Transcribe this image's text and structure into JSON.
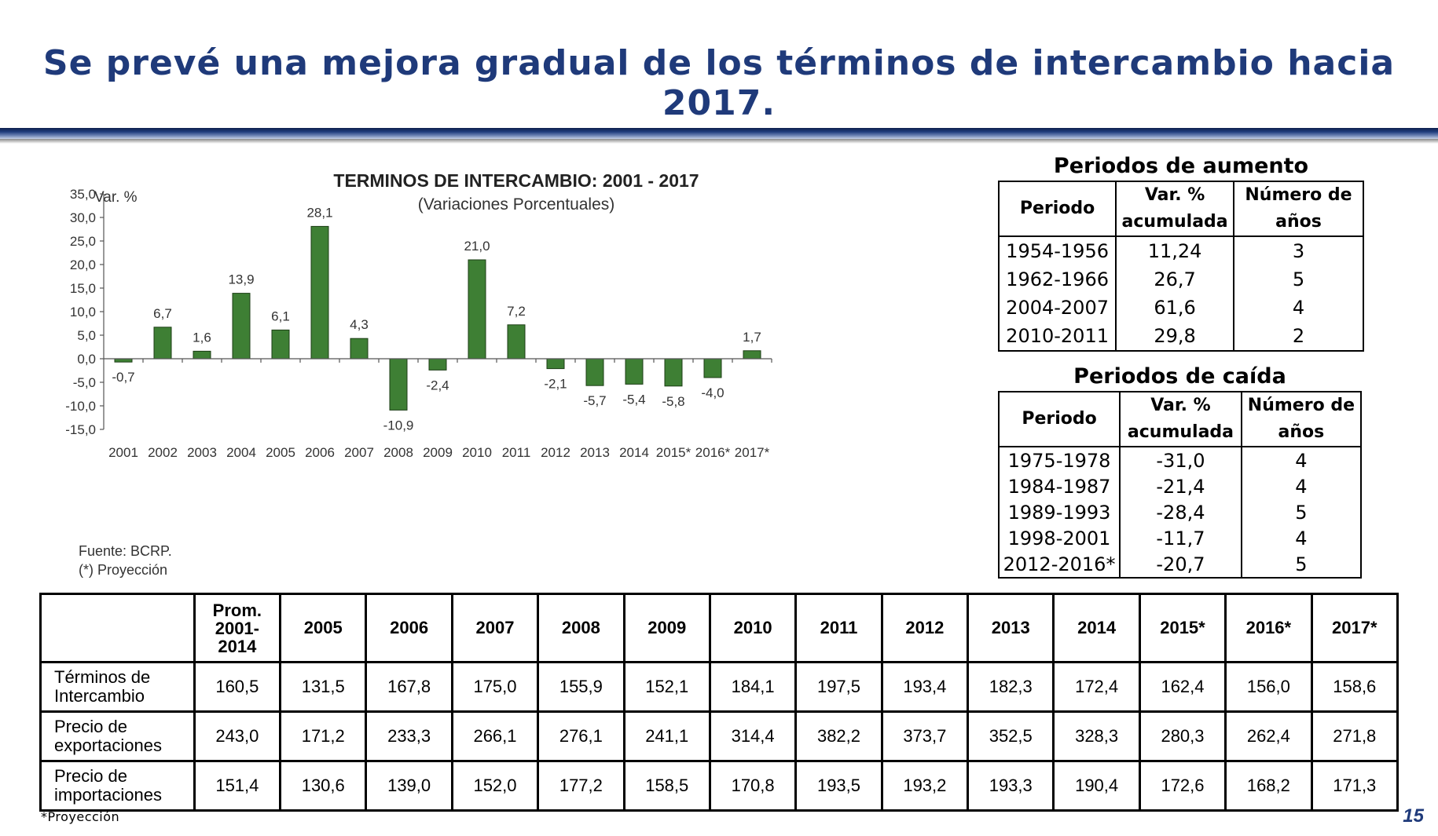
{
  "slide": {
    "title": "Se prevé una mejora gradual de los términos de intercambio hacia 2017.",
    "page_number": "15",
    "footnote": "*Proyección"
  },
  "colors": {
    "bar": "#3e7f34",
    "title": "#1f3a7a"
  },
  "chart_data": {
    "type": "bar",
    "title": "TERMINOS DE INTERCAMBIO: 2001 -  2017",
    "subtitle": "(Variaciones  Porcentuales)",
    "ylabel": "Var. %",
    "xlabel": "",
    "categories": [
      "2001",
      "2002",
      "2003",
      "2004",
      "2005",
      "2006",
      "2007",
      "2008",
      "2009",
      "2010",
      "2011",
      "2012",
      "2013",
      "2014",
      "2015*",
      "2016*",
      "2017*"
    ],
    "values": [
      -0.7,
      6.7,
      1.6,
      13.9,
      6.1,
      28.1,
      4.3,
      -10.9,
      -2.4,
      21.0,
      7.2,
      -2.1,
      -5.7,
      -5.4,
      -5.8,
      -4.0,
      1.7
    ],
    "value_labels": [
      "-0,7",
      "6,7",
      "1,6",
      "13,9",
      "6,1",
      "28,1",
      "4,3",
      "-10,9",
      "-2,4",
      "21,0",
      "7,2",
      "-2,1",
      "-5,7",
      "-5,4",
      "-5,8",
      "-4,0",
      "1,7"
    ],
    "ylim": [
      -15,
      35
    ],
    "yticks": [
      35,
      30,
      25,
      20,
      15,
      10,
      5,
      0,
      -5,
      -10,
      -15
    ],
    "ytick_labels": [
      "35,0",
      "30,0",
      "25,0",
      "20,0",
      "15,0",
      "10,0",
      "5,0",
      "0,0",
      "-5,0",
      "-10,0",
      "-15,0"
    ],
    "grid": false,
    "source": "Fuente: BCRP.",
    "note": "(*) Proyección"
  },
  "aumento": {
    "title": "Periodos de aumento",
    "headers": [
      "Periodo",
      "Var. %",
      "acumulada",
      "Número de",
      "años"
    ],
    "rows": [
      [
        "1954-1956",
        "11,24",
        "3"
      ],
      [
        "1962-1966",
        "26,7",
        "5"
      ],
      [
        "2004-2007",
        "61,6",
        "4"
      ],
      [
        "2010-2011",
        "29,8",
        "2"
      ]
    ]
  },
  "caida": {
    "title": "Periodos de caída",
    "headers": [
      "Periodo",
      "Var. %",
      "acumulada",
      "Número de",
      "años"
    ],
    "rows": [
      [
        "1975-1978",
        "-31,0",
        "4"
      ],
      [
        "1984-1987",
        "-21,4",
        "4"
      ],
      [
        "1989-1993",
        "-28,4",
        "5"
      ],
      [
        "1998-2001",
        "-11,7",
        "4"
      ],
      [
        "2012-2016*",
        "-20,7",
        "5"
      ]
    ]
  },
  "index_table": {
    "headers": [
      "",
      "Prom.",
      "2001-",
      "2014",
      "2005",
      "2006",
      "2007",
      "2008",
      "2009",
      "2010",
      "2011",
      "2012",
      "2013",
      "2014",
      "2015*",
      "2016*",
      "2017*"
    ],
    "rows": [
      {
        "label1": "Términos de",
        "label2": "Intercambio",
        "values": [
          "160,5",
          "131,5",
          "167,8",
          "175,0",
          "155,9",
          "152,1",
          "184,1",
          "197,5",
          "193,4",
          "182,3",
          "172,4",
          "162,4",
          "156,0",
          "158,6"
        ]
      },
      {
        "label1": "Precio de",
        "label2": "exportaciones",
        "values": [
          "243,0",
          "171,2",
          "233,3",
          "266,1",
          "276,1",
          "241,1",
          "314,4",
          "382,2",
          "373,7",
          "352,5",
          "328,3",
          "280,3",
          "262,4",
          "271,8"
        ]
      },
      {
        "label1": "Precio de",
        "label2": "importaciones",
        "values": [
          "151,4",
          "130,6",
          "139,0",
          "152,0",
          "177,2",
          "158,5",
          "170,8",
          "193,5",
          "193,2",
          "193,3",
          "190,4",
          "172,6",
          "168,2",
          "171,3"
        ]
      }
    ]
  }
}
